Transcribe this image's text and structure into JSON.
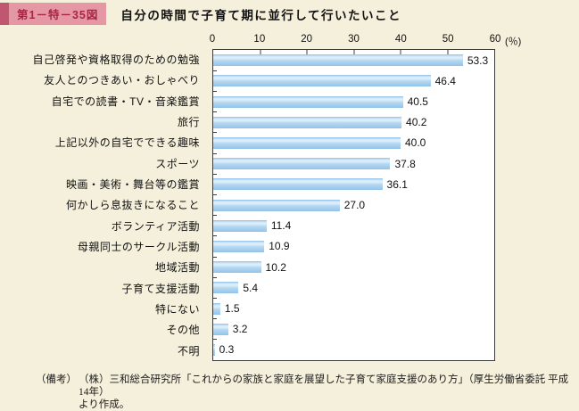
{
  "figure": {
    "badge": "第1－特－35図",
    "title": "自分の時間で子育て期に並行して行いたいこと"
  },
  "chart_data": {
    "type": "bar",
    "orientation": "horizontal",
    "title": "自分の時間で子育て期に並行して行いたいこと",
    "categories": [
      "自己啓発や資格取得のための勉強",
      "友人とのつきあい・おしゃべり",
      "自宅での読書・TV・音楽鑑賞",
      "旅行",
      "上記以外の自宅でできる趣味",
      "スポーツ",
      "映画・美術・舞台等の鑑賞",
      "何かしら息抜きになること",
      "ボランティア活動",
      "母親同士のサークル活動",
      "地域活動",
      "子育て支援活動",
      "特にない",
      "その他",
      "不明"
    ],
    "values": [
      53.3,
      46.4,
      40.5,
      40.2,
      40.0,
      37.8,
      36.1,
      27.0,
      11.4,
      10.9,
      10.2,
      5.4,
      1.5,
      3.2,
      0.3
    ],
    "xlim": [
      0,
      60
    ],
    "xticks": [
      0,
      10,
      20,
      30,
      40,
      50,
      60
    ],
    "unit": "(％)",
    "grid": false,
    "legend": "none",
    "bar_color": "#a3cdee"
  },
  "note": {
    "label": "（備考）",
    "line1": "（株）三和総合研究所「これからの家族と家庭を展望した子育て家庭支援のあり方」（厚生労働省委託 平成14年）",
    "line2": "より作成。"
  },
  "colors": {
    "page_background": "#f5f0db",
    "badge_strip": "#c0566f",
    "badge_background": "#e598a4",
    "badge_text": "#a62646",
    "plot_background": "#ffffff",
    "plot_border": "#3c3c3c",
    "bar_fill": "#a3cdee"
  }
}
